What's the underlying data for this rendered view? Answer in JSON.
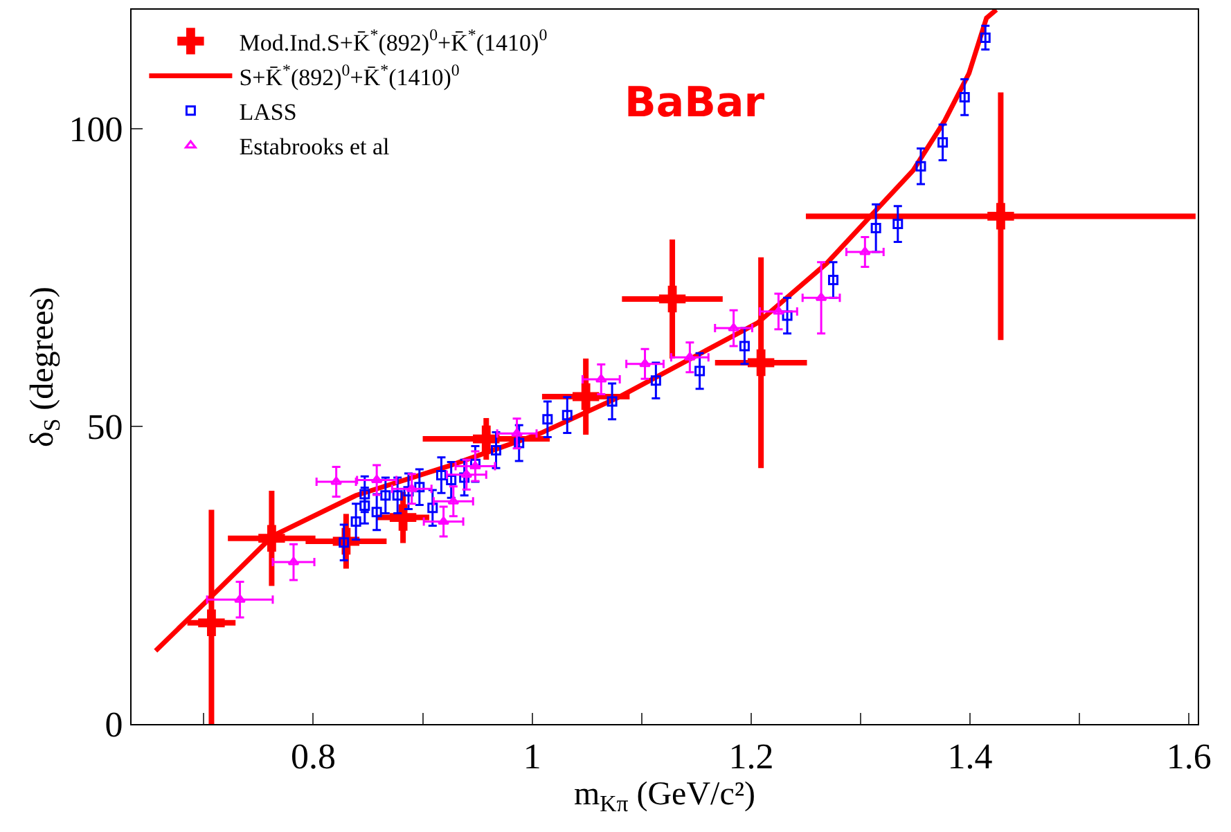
{
  "chart_data": {
    "type": "scatter",
    "xlabel": "m$_{Kπ}$ (GeV/c²)",
    "ylabel": "δ$_{S}$ (degrees)",
    "xlim": [
      0.634,
      1.608
    ],
    "ylim": [
      0,
      120
    ],
    "xticks": [
      {
        "value": 0.7,
        "label": null
      },
      0.8,
      {
        "value": 0.9,
        "label": null
      },
      {
        "value": 1,
        "label": "1"
      },
      {
        "value": 1.1,
        "label": null
      },
      1.2,
      {
        "value": 1.3,
        "label": null
      },
      1.4,
      {
        "value": 1.5,
        "label": null
      },
      1.6
    ],
    "yticks": [
      0,
      50,
      100
    ],
    "legend": "top left",
    "annotations": [
      "BaBar"
    ],
    "series": [
      {
        "name": "Mod.Ind.S+K̄$^{*}$(892)$^{0}$+K̄$^{*}$(1410)$^{0}$",
        "marker": "cross",
        "color": "#ff0000",
        "x": [
          0.707,
          0.762,
          0.83,
          0.882,
          0.958,
          1.049,
          1.128,
          1.209,
          1.428
        ],
        "values": [
          17,
          31.2,
          30.7,
          34.7,
          47.9,
          55,
          71.4,
          60.7,
          85.3
        ],
        "errors": [
          [
            0,
            36
          ],
          8,
          4.6,
          4.3,
          3.5,
          6.4,
          10,
          17.7,
          20.8
        ],
        "xerrors": [
          0.022,
          0.04,
          0.037,
          0.024,
          0.058,
          0.04,
          0.046,
          0.042,
          0.178
        ]
      },
      {
        "name": "S+K̄$^{*}$(892)$^{0}$+K̄$^{*}$(1410)$^{0}$",
        "type": "line",
        "marker": "none",
        "line_style": "solid",
        "color": "#ff0000",
        "x": [
          0.656,
          0.704,
          0.763,
          0.839,
          0.923,
          1.007,
          1.079,
          1.206,
          1.269,
          1.314,
          1.348,
          1.377,
          1.399,
          1.415,
          1.424
        ],
        "values": [
          12.3,
          20.9,
          31.6,
          38.4,
          43.3,
          48.8,
          54.9,
          67.4,
          77.4,
          86.3,
          93.0,
          101.4,
          109.3,
          118.6,
          120
        ]
      },
      {
        "name": "LASS",
        "marker": "square",
        "color": "#0000ff",
        "x": [
          0.828,
          0.839,
          0.847,
          0.847,
          0.858,
          0.866,
          0.877,
          0.887,
          0.897,
          0.909,
          0.917,
          0.926,
          0.938,
          0.948,
          0.967,
          0.988,
          1.014,
          1.032,
          1.073,
          1.113,
          1.153,
          1.194,
          1.233,
          1.275,
          1.314,
          1.334,
          1.355,
          1.375,
          1.395,
          1.414
        ],
        "values": [
          30.5,
          34.0,
          36.7,
          38.6,
          35.6,
          38.4,
          38.4,
          39.1,
          39.8,
          36.3,
          41.8,
          41.0,
          41.4,
          43.7,
          46.0,
          47.2,
          51.2,
          51.9,
          54.2,
          57.7,
          59.3,
          63.5,
          68.6,
          74.6,
          83.3,
          84.0,
          93.7,
          97.7,
          105.3,
          115.3
        ],
        "errors": [
          3,
          3,
          3,
          3,
          3,
          3,
          3,
          3,
          3,
          3,
          3,
          3,
          3,
          3,
          3,
          3,
          3,
          3,
          3,
          3,
          3,
          3,
          3,
          3,
          4,
          3,
          3,
          3,
          3,
          2
        ]
      },
      {
        "name": "Estabrooks et al",
        "marker": "triangle",
        "color": "#ff00ff",
        "x": [
          0.733,
          0.782,
          0.821,
          0.858,
          0.89,
          0.919,
          0.928,
          0.94,
          0.948,
          0.986,
          1.063,
          1.103,
          1.144,
          1.184,
          1.225,
          1.264,
          1.304
        ],
        "values": [
          20.9,
          27.2,
          40.7,
          41.0,
          39.5,
          34.0,
          37.4,
          41.9,
          43.3,
          48.8,
          57.9,
          60.5,
          61.6,
          66.5,
          69.3,
          71.6,
          79.3
        ],
        "errors": [
          3,
          3,
          2.5,
          2.5,
          2.5,
          2.5,
          2.5,
          2.5,
          2.5,
          2.5,
          2.5,
          2.5,
          2.5,
          3,
          3,
          6,
          2.5
        ],
        "xerrors": [
          0.03,
          0.019,
          0.018,
          0.018,
          0.018,
          0.018,
          0.018,
          0.018,
          0.018,
          0.018,
          0.017,
          0.017,
          0.017,
          0.017,
          0.017,
          0.017,
          0.017
        ]
      }
    ]
  }
}
